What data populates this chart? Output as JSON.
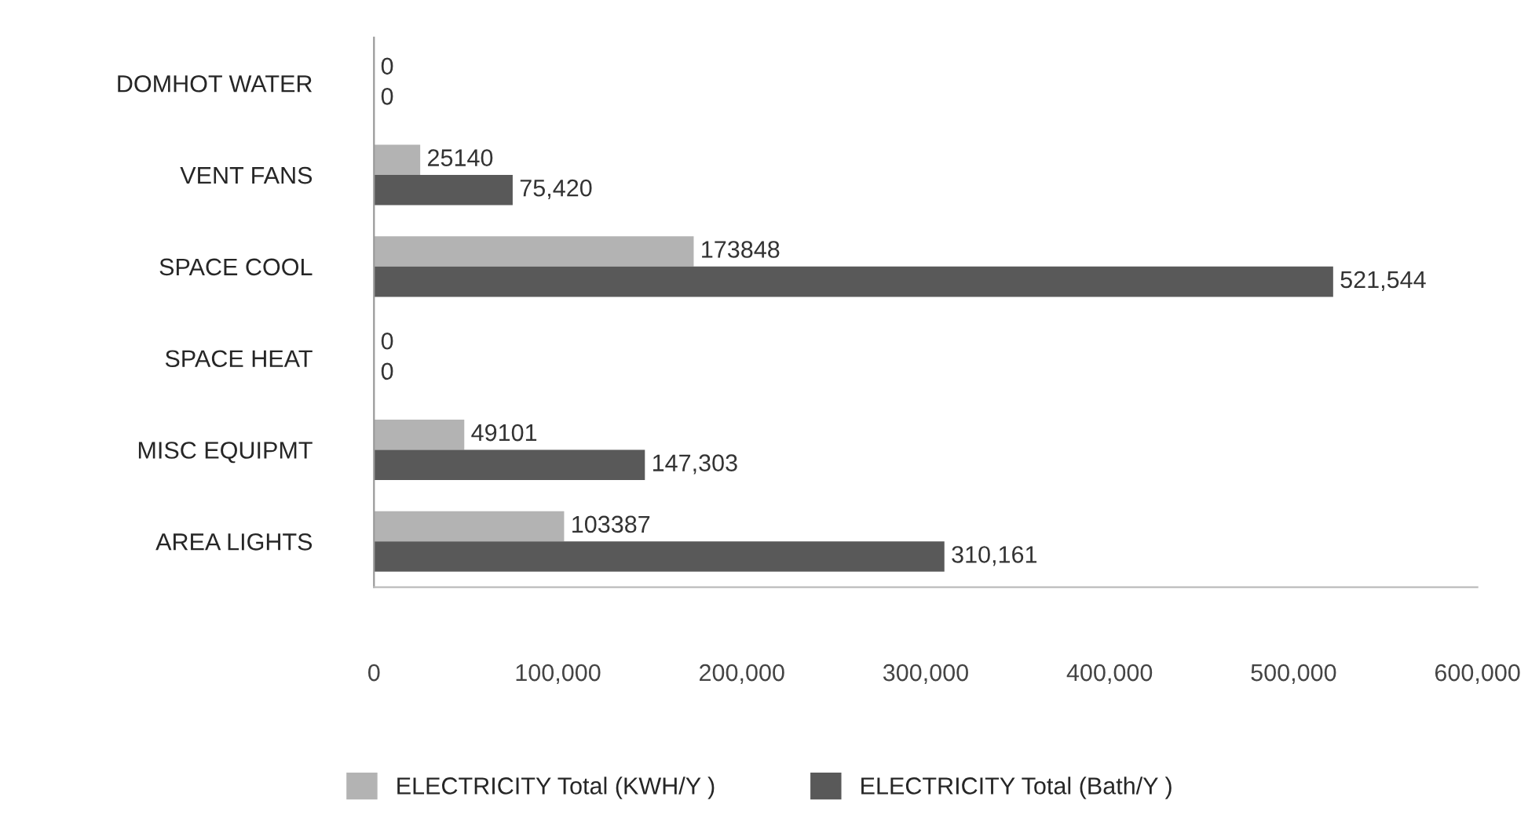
{
  "chart_data": {
    "type": "bar",
    "orientation": "horizontal",
    "categories": [
      "DOMHOT WATER",
      "VENT FANS",
      "SPACE COOL",
      "SPACE HEAT",
      "MISC EQUIPMT",
      "AREA LIGHTS"
    ],
    "series": [
      {
        "name": "ELECTRICITY Total (KWH/Y )",
        "color": "#b3b3b3",
        "values": [
          0,
          25140,
          173848,
          0,
          49101,
          103387
        ],
        "value_labels": [
          "0",
          "25140",
          "173848",
          "0",
          "49101",
          "103387"
        ]
      },
      {
        "name": "ELECTRICITY Total (Bath/Y )",
        "color": "#595959",
        "values": [
          0,
          75420,
          521544,
          0,
          147303,
          310161
        ],
        "value_labels": [
          "0",
          "75,420",
          "521,544",
          "0",
          "147,303",
          "310,161"
        ]
      }
    ],
    "xlim": [
      0,
      600000
    ],
    "xticks": [
      {
        "value": 0,
        "label": "0"
      },
      {
        "value": 100000,
        "label": "100,000"
      },
      {
        "value": 200000,
        "label": "200,000"
      },
      {
        "value": 300000,
        "label": "300,000"
      },
      {
        "value": 400000,
        "label": "400,000"
      },
      {
        "value": 500000,
        "label": "500,000"
      },
      {
        "value": 600000,
        "label": "600,000"
      }
    ],
    "grid": false,
    "legend": "bottom"
  }
}
